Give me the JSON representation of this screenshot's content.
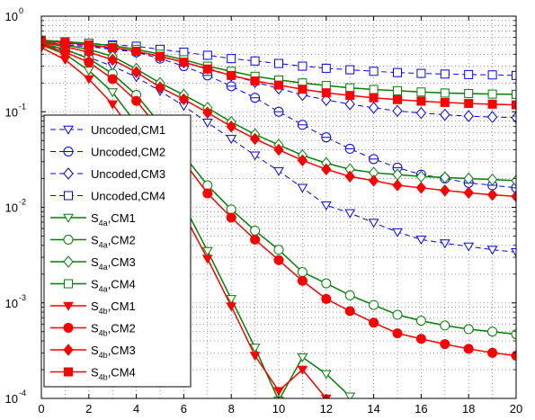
{
  "chart_data": {
    "type": "line",
    "xlim": [
      0,
      20
    ],
    "ylim": [
      0.0001,
      1
    ],
    "yscale": "log",
    "grid": true,
    "legend_position": "left",
    "x_ticks": [
      "0",
      "2",
      "4",
      "6",
      "8",
      "10",
      "12",
      "14",
      "16",
      "18",
      "20"
    ],
    "y_ticks": [
      {
        "base": "10",
        "exp": "-4"
      },
      {
        "base": "10",
        "exp": "-3"
      },
      {
        "base": "10",
        "exp": "-2"
      },
      {
        "base": "10",
        "exp": "-1"
      },
      {
        "base": "10",
        "exp": "0"
      }
    ],
    "series": [
      {
        "name": "Uncoded,CM1",
        "label": {
          "main": "Uncoded,CM1"
        },
        "color": "#0000ff",
        "dashed": true,
        "marker": "triangle-down",
        "filled": false,
        "x": [
          0,
          1,
          2,
          3,
          4,
          5,
          6,
          7,
          8,
          9,
          10,
          11,
          12,
          13,
          14,
          15,
          16,
          17,
          18,
          19,
          20
        ],
        "y": [
          0.5,
          0.44,
          0.37,
          0.3,
          0.23,
          0.165,
          0.115,
          0.077,
          0.052,
          0.035,
          0.024,
          0.016,
          0.0105,
          0.0087,
          0.0069,
          0.0055,
          0.0046,
          0.0042,
          0.0039,
          0.0036,
          0.0034
        ]
      },
      {
        "name": "Uncoded,CM2",
        "label": {
          "main": "Uncoded,CM2"
        },
        "color": "#0000ff",
        "dashed": true,
        "marker": "circle-line",
        "filled": false,
        "x": [
          0,
          1,
          2,
          3,
          4,
          5,
          6,
          7,
          8,
          9,
          10,
          11,
          12,
          13,
          14,
          15,
          16,
          17,
          18,
          19,
          20
        ],
        "y": [
          0.53,
          0.5,
          0.48,
          0.45,
          0.42,
          0.36,
          0.3,
          0.24,
          0.185,
          0.14,
          0.1,
          0.073,
          0.054,
          0.041,
          0.032,
          0.026,
          0.022,
          0.02,
          0.018,
          0.017,
          0.016
        ]
      },
      {
        "name": "Uncoded,CM3",
        "label": {
          "main": "Uncoded,CM3"
        },
        "color": "#0000ff",
        "dashed": true,
        "marker": "diamond",
        "filled": false,
        "x": [
          0,
          1,
          2,
          3,
          4,
          5,
          6,
          7,
          8,
          9,
          10,
          11,
          12,
          13,
          14,
          15,
          16,
          17,
          18,
          19,
          20
        ],
        "y": [
          0.55,
          0.52,
          0.49,
          0.46,
          0.42,
          0.38,
          0.33,
          0.285,
          0.24,
          0.205,
          0.175,
          0.15,
          0.133,
          0.12,
          0.11,
          0.102,
          0.097,
          0.093,
          0.09,
          0.088,
          0.087
        ]
      },
      {
        "name": "Uncoded,CM4",
        "label": {
          "main": "Uncoded,CM4"
        },
        "color": "#0000ff",
        "dashed": true,
        "marker": "square",
        "filled": false,
        "x": [
          0,
          1,
          2,
          3,
          4,
          5,
          6,
          7,
          8,
          9,
          10,
          11,
          12,
          13,
          14,
          15,
          16,
          17,
          18,
          19,
          20
        ],
        "y": [
          0.56,
          0.54,
          0.52,
          0.5,
          0.485,
          0.45,
          0.42,
          0.39,
          0.36,
          0.34,
          0.32,
          0.3,
          0.285,
          0.275,
          0.265,
          0.257,
          0.252,
          0.248,
          0.245,
          0.243,
          0.24
        ]
      },
      {
        "name": "S4a,CM1",
        "label": {
          "main": "S",
          "sub": "4a",
          "suffix": ",CM1"
        },
        "color": "#008000",
        "dashed": false,
        "marker": "triangle-down",
        "filled": false,
        "x": [
          0,
          1,
          2,
          3,
          4,
          5,
          6,
          7,
          8,
          9,
          10,
          11,
          12,
          13
        ],
        "y": [
          0.5,
          0.4,
          0.27,
          0.16,
          0.075,
          0.03,
          0.0105,
          0.0035,
          0.0011,
          0.00034,
          9.5e-05,
          0.00027,
          0.00018,
          0.000105
        ]
      },
      {
        "name": "S4a,CM2",
        "label": {
          "main": "S",
          "sub": "4a",
          "suffix": ",CM2"
        },
        "color": "#008000",
        "dashed": false,
        "marker": "circle",
        "filled": false,
        "x": [
          0,
          1,
          2,
          3,
          4,
          5,
          6,
          7,
          8,
          9,
          10,
          11,
          12,
          13,
          14,
          15,
          16,
          17,
          18,
          19,
          20
        ],
        "y": [
          0.52,
          0.45,
          0.36,
          0.25,
          0.15,
          0.075,
          0.035,
          0.017,
          0.0095,
          0.0057,
          0.0036,
          0.0021,
          0.0016,
          0.0012,
          0.00095,
          0.00075,
          0.00065,
          0.00058,
          0.00053,
          0.0005,
          0.00047
        ]
      },
      {
        "name": "S4a,CM3",
        "label": {
          "main": "S",
          "sub": "4a",
          "suffix": ",CM3"
        },
        "color": "#008000",
        "dashed": false,
        "marker": "diamond",
        "filled": false,
        "x": [
          0,
          1,
          2,
          3,
          4,
          5,
          6,
          7,
          8,
          9,
          10,
          11,
          12,
          13,
          14,
          15,
          16,
          17,
          18,
          19,
          20
        ],
        "y": [
          0.54,
          0.5,
          0.45,
          0.38,
          0.28,
          0.2,
          0.15,
          0.11,
          0.078,
          0.058,
          0.045,
          0.035,
          0.029,
          0.025,
          0.023,
          0.022,
          0.021,
          0.0205,
          0.02,
          0.0195,
          0.019
        ]
      },
      {
        "name": "S4a,CM4",
        "label": {
          "main": "S",
          "sub": "4a",
          "suffix": ",CM4"
        },
        "color": "#008000",
        "dashed": false,
        "marker": "square",
        "filled": false,
        "x": [
          0,
          1,
          2,
          3,
          4,
          5,
          6,
          7,
          8,
          9,
          10,
          11,
          12,
          13,
          14,
          15,
          16,
          17,
          18,
          19,
          20
        ],
        "y": [
          0.56,
          0.54,
          0.52,
          0.49,
          0.45,
          0.4,
          0.35,
          0.3,
          0.265,
          0.235,
          0.215,
          0.2,
          0.188,
          0.178,
          0.171,
          0.166,
          0.161,
          0.157,
          0.155,
          0.153,
          0.152
        ]
      },
      {
        "name": "S4b,CM1",
        "label": {
          "main": "S",
          "sub": "4b",
          "suffix": ",CM1"
        },
        "color": "#ff0000",
        "dashed": false,
        "marker": "triangle-down",
        "filled": true,
        "x": [
          0,
          1,
          2,
          3,
          4,
          5,
          6,
          7,
          8,
          9,
          10,
          11,
          12
        ],
        "y": [
          0.47,
          0.35,
          0.22,
          0.12,
          0.055,
          0.022,
          0.0085,
          0.0029,
          0.00092,
          0.00028,
          0.00012,
          0.0002,
          0.0001
        ]
      },
      {
        "name": "S4b,CM2",
        "label": {
          "main": "S",
          "sub": "4b",
          "suffix": ",CM2"
        },
        "color": "#ff0000",
        "dashed": false,
        "marker": "circle",
        "filled": true,
        "x": [
          0,
          1,
          2,
          3,
          4,
          5,
          6,
          7,
          8,
          9,
          10,
          11,
          12,
          13,
          14,
          15,
          16,
          17,
          18,
          19,
          20
        ],
        "y": [
          0.51,
          0.42,
          0.33,
          0.22,
          0.13,
          0.065,
          0.03,
          0.014,
          0.0078,
          0.0046,
          0.0028,
          0.0017,
          0.0011,
          0.00082,
          0.00062,
          0.00048,
          0.00042,
          0.00037,
          0.00033,
          0.0003,
          0.00028
        ]
      },
      {
        "name": "S4b,CM3",
        "label": {
          "main": "S",
          "sub": "4b",
          "suffix": ",CM3"
        },
        "color": "#ff0000",
        "dashed": false,
        "marker": "diamond",
        "filled": true,
        "x": [
          0,
          1,
          2,
          3,
          4,
          5,
          6,
          7,
          8,
          9,
          10,
          11,
          12,
          13,
          14,
          15,
          16,
          17,
          18,
          19,
          20
        ],
        "y": [
          0.53,
          0.48,
          0.42,
          0.35,
          0.26,
          0.18,
          0.135,
          0.098,
          0.07,
          0.052,
          0.04,
          0.031,
          0.025,
          0.021,
          0.019,
          0.017,
          0.016,
          0.015,
          0.0142,
          0.0135,
          0.013
        ]
      },
      {
        "name": "S4b,CM4",
        "label": {
          "main": "S",
          "sub": "4b",
          "suffix": ",CM4"
        },
        "color": "#ff0000",
        "dashed": false,
        "marker": "square",
        "filled": true,
        "x": [
          0,
          1,
          2,
          3,
          4,
          5,
          6,
          7,
          8,
          9,
          10,
          11,
          12,
          13,
          14,
          15,
          16,
          17,
          18,
          19,
          20
        ],
        "y": [
          0.55,
          0.53,
          0.5,
          0.47,
          0.43,
          0.38,
          0.33,
          0.28,
          0.24,
          0.21,
          0.19,
          0.172,
          0.158,
          0.148,
          0.14,
          0.134,
          0.129,
          0.125,
          0.122,
          0.12,
          0.118
        ]
      }
    ]
  }
}
